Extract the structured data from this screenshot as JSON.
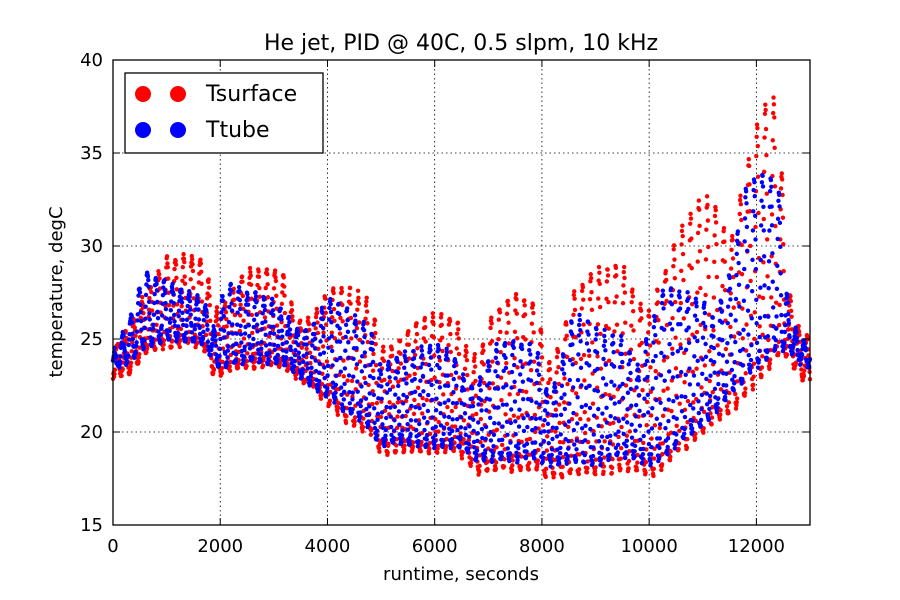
{
  "chart_data": {
    "type": "scatter",
    "title": "He jet, PID @ 40C, 0.5 slpm, 10 kHz",
    "xlabel": "runtime, seconds",
    "ylabel": "temperature, degC",
    "xlim": [
      0,
      13000
    ],
    "ylim": [
      15,
      40
    ],
    "xticks": [
      0,
      2000,
      4000,
      6000,
      8000,
      10000,
      12000
    ],
    "yticks": [
      15,
      20,
      25,
      30,
      35,
      40
    ],
    "xtick_labels": [
      "0",
      "2000",
      "4000",
      "6000",
      "8000",
      "10000",
      "12000"
    ],
    "ytick_labels": [
      "15",
      "20",
      "25",
      "30",
      "35",
      "40"
    ],
    "grid": true,
    "legend_position": "top-left",
    "series": [
      {
        "name": "Tsurface",
        "color": "#ff0000",
        "envelope": {
          "x": [
            0,
            300,
            600,
            1000,
            1400,
            1700,
            1900,
            2100,
            2500,
            2900,
            3200,
            3400,
            3700,
            4000,
            4400,
            4800,
            5000,
            5300,
            5700,
            6000,
            6400,
            6600,
            6800,
            7100,
            7500,
            7900,
            8100,
            8300,
            8600,
            9000,
            9500,
            9800,
            10000,
            10300,
            10600,
            11000,
            11200,
            11500,
            11800,
            12100,
            12400,
            12600,
            12800,
            13000
          ],
          "high": [
            24.5,
            25.5,
            27.5,
            29.3,
            29.5,
            29.3,
            26.5,
            27.0,
            28.7,
            28.8,
            28.5,
            26.0,
            26.0,
            27.5,
            27.8,
            27.0,
            24.5,
            24.8,
            26.0,
            26.3,
            26.2,
            24.5,
            24.0,
            26.5,
            27.3,
            27.0,
            23.5,
            24.5,
            27.5,
            28.8,
            29.1,
            27.0,
            26.5,
            28.7,
            31.0,
            32.6,
            32.5,
            30.0,
            34.0,
            37.5,
            38.0,
            27.5,
            25.5,
            25.0
          ],
          "low": [
            23.0,
            23.2,
            24.3,
            24.6,
            24.8,
            24.5,
            23.0,
            23.3,
            23.5,
            23.6,
            23.6,
            23.0,
            22.5,
            21.5,
            20.5,
            20.0,
            18.8,
            19.0,
            19.0,
            19.0,
            19.0,
            18.5,
            17.8,
            18.0,
            18.0,
            18.0,
            17.6,
            17.6,
            17.8,
            17.8,
            18.0,
            18.0,
            17.6,
            18.3,
            19.0,
            20.0,
            20.5,
            21.0,
            22.0,
            23.0,
            24.0,
            24.0,
            23.0,
            22.8
          ]
        }
      },
      {
        "name": "Ttube",
        "color": "#0000ff",
        "envelope": {
          "x": [
            0,
            300,
            600,
            1000,
            1400,
            1700,
            1900,
            2100,
            2500,
            2900,
            3200,
            3400,
            3700,
            4000,
            4400,
            4800,
            5000,
            5300,
            5700,
            6000,
            6400,
            6600,
            6800,
            7100,
            7500,
            7900,
            8100,
            8300,
            8600,
            9000,
            9500,
            9800,
            10000,
            10300,
            10600,
            11000,
            11200,
            11500,
            11800,
            12100,
            12400,
            12600,
            12800,
            13000
          ],
          "high": [
            24.2,
            26.0,
            28.7,
            28.0,
            27.5,
            27.0,
            25.5,
            28.0,
            27.5,
            27.2,
            26.5,
            25.5,
            25.5,
            27.3,
            26.5,
            25.5,
            23.5,
            24.0,
            24.5,
            24.8,
            24.0,
            22.5,
            22.5,
            24.5,
            25.0,
            24.5,
            22.0,
            23.0,
            26.5,
            25.5,
            25.0,
            23.5,
            25.5,
            28.0,
            27.5,
            27.0,
            26.0,
            28.5,
            33.0,
            34.0,
            33.5,
            26.5,
            25.0,
            24.8
          ],
          "low": [
            23.4,
            23.8,
            24.7,
            25.0,
            25.0,
            24.8,
            23.6,
            23.6,
            23.8,
            23.8,
            23.7,
            23.2,
            22.5,
            22.0,
            21.0,
            20.3,
            19.3,
            19.5,
            19.3,
            19.3,
            19.3,
            19.0,
            18.5,
            18.5,
            18.5,
            18.7,
            18.3,
            18.3,
            18.5,
            18.3,
            18.8,
            18.5,
            18.3,
            18.8,
            19.5,
            20.5,
            21.0,
            22.0,
            23.0,
            23.8,
            24.5,
            24.5,
            23.8,
            23.5
          ]
        }
      }
    ]
  }
}
